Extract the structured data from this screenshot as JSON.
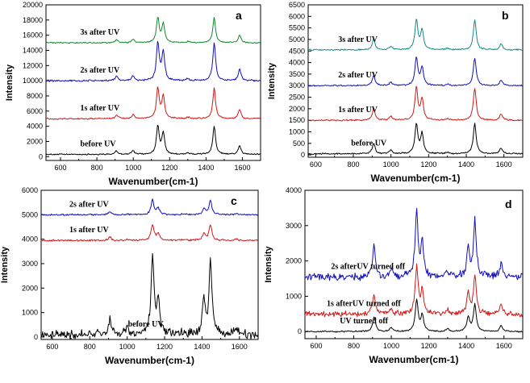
{
  "chart_data": [
    {
      "type": "line",
      "panel_label": "a",
      "xlabel": "Wavenumber(cm-1)",
      "ylabel": "Intensity",
      "xlim": [
        520,
        1700
      ],
      "ylim": [
        -500,
        20000
      ],
      "xticks": [
        600,
        800,
        1000,
        1200,
        1400,
        1600
      ],
      "yticks": [
        0,
        2000,
        4000,
        6000,
        8000,
        10000,
        12000,
        14000,
        16000,
        18000,
        20000
      ],
      "peaks": [
        [
          908,
          0.12
        ],
        [
          999,
          0.13
        ],
        [
          1135,
          1.0
        ],
        [
          1165,
          0.75
        ],
        [
          1300,
          0.05
        ],
        [
          1445,
          1.0
        ],
        [
          1585,
          0.3
        ]
      ],
      "series": [
        {
          "name": "before UV",
          "color": "#000000",
          "baseline": 300,
          "scale": 3700
        },
        {
          "name": "1s after UV",
          "color": "#d01818",
          "baseline": 5000,
          "scale": 4000
        },
        {
          "name": "2s after UV",
          "color": "#1010b8",
          "baseline": 10000,
          "scale": 5000
        },
        {
          "name": "3s after UV",
          "color": "#108a2a",
          "baseline": 15000,
          "scale": 3300
        }
      ]
    },
    {
      "type": "line",
      "panel_label": "b",
      "xlabel": "Wavenumber(cm-1)",
      "ylabel": "Intensity",
      "xlim": [
        560,
        1700
      ],
      "ylim": [
        -100,
        6500
      ],
      "xticks": [
        600,
        800,
        1000,
        1200,
        1400,
        1600
      ],
      "yticks": [
        0,
        500,
        1000,
        1500,
        2000,
        2500,
        3000,
        3500,
        4000,
        4500,
        5000,
        5500,
        6000,
        6500
      ],
      "peaks": [
        [
          908,
          0.35
        ],
        [
          999,
          0.12
        ],
        [
          1135,
          1.0
        ],
        [
          1165,
          0.65
        ],
        [
          1300,
          0.05
        ],
        [
          1445,
          1.0
        ],
        [
          1585,
          0.2
        ]
      ],
      "series": [
        {
          "name": "before UV",
          "color": "#000000",
          "baseline": 50,
          "scale": 1300
        },
        {
          "name": "1s after UV",
          "color": "#d01818",
          "baseline": 1500,
          "scale": 1400
        },
        {
          "name": "2s after UV",
          "color": "#1010b8",
          "baseline": 3000,
          "scale": 1200
        },
        {
          "name": "3s after UV",
          "color": "#108a8a",
          "baseline": 4550,
          "scale": 1300
        }
      ]
    },
    {
      "type": "line",
      "panel_label": "c",
      "xlabel": "Wavenumber(cm-1)",
      "ylabel": "Intensity",
      "xlim": [
        540,
        1700
      ],
      "ylim": [
        -100,
        6000
      ],
      "xticks": [
        600,
        800,
        1000,
        1200,
        1400,
        1600
      ],
      "yticks": [
        0,
        1000,
        2000,
        3000,
        4000,
        5000,
        6000
      ],
      "peaks": [
        [
          908,
          0.2
        ],
        [
          999,
          0.06
        ],
        [
          1135,
          1.0
        ],
        [
          1165,
          0.45
        ],
        [
          1300,
          0.04
        ],
        [
          1410,
          0.42
        ],
        [
          1445,
          0.97
        ],
        [
          1585,
          0.08
        ]
      ],
      "series": [
        {
          "name": "before UV",
          "color": "#000000",
          "baseline": 100,
          "scale": 3200
        },
        {
          "name": "1s after UV",
          "color": "#d01818",
          "baseline": 3950,
          "scale": 650
        },
        {
          "name": "2s after UV",
          "color": "#1010b8",
          "baseline": 5000,
          "scale": 600
        }
      ]
    },
    {
      "type": "line",
      "panel_label": "d",
      "xlabel": "Wavenumber(cm-1)",
      "ylabel": "Intensity",
      "xlim": [
        540,
        1700
      ],
      "ylim": [
        -200,
        4000
      ],
      "xticks": [
        600,
        800,
        1000,
        1200,
        1400,
        1600
      ],
      "yticks": [
        0,
        1000,
        2000,
        3000,
        4000
      ],
      "peaks": [
        [
          908,
          0.45
        ],
        [
          999,
          0.12
        ],
        [
          1135,
          1.0
        ],
        [
          1165,
          0.5
        ],
        [
          1300,
          0.08
        ],
        [
          1410,
          0.45
        ],
        [
          1445,
          0.85
        ],
        [
          1585,
          0.2
        ]
      ],
      "series": [
        {
          "name": "UV turned off",
          "color": "#000000",
          "baseline": 0,
          "scale": 900
        },
        {
          "name": "1s afterUV turned off",
          "color": "#d01818",
          "baseline": 500,
          "scale": 1300
        },
        {
          "name": "2s afterUV turned off",
          "color": "#1010b8",
          "baseline": 1550,
          "scale": 1850
        }
      ]
    }
  ]
}
